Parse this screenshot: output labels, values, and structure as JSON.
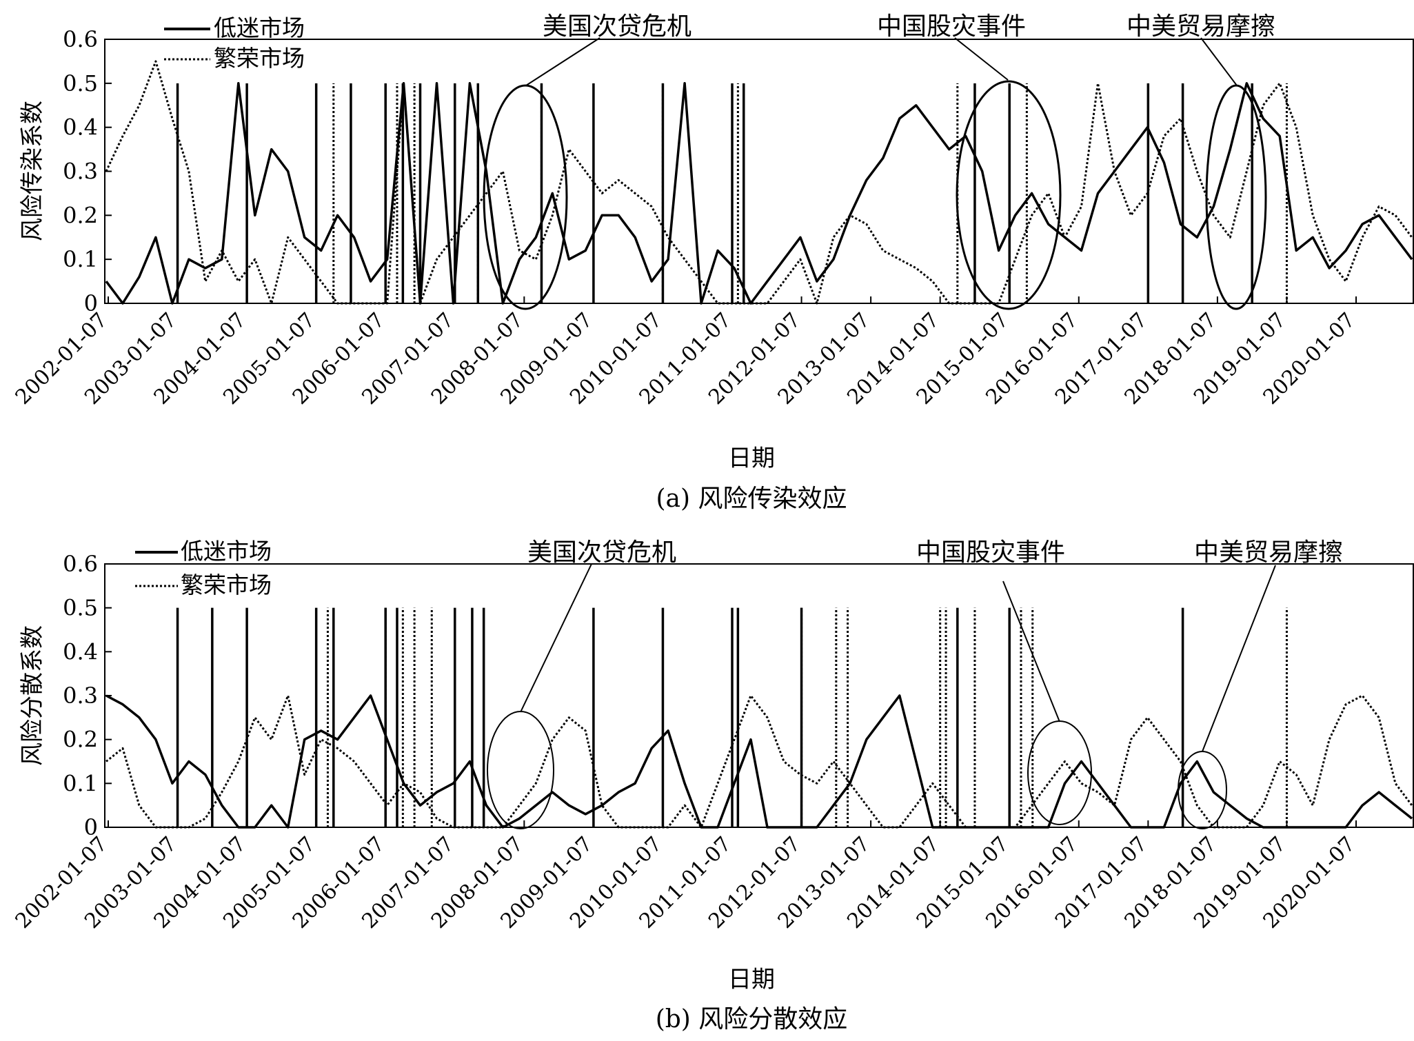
{
  "figure": {
    "caption_a": "(a) 风险传染效应",
    "caption_b": "(b) 风险分散效应"
  },
  "chart_data": [
    {
      "type": "line",
      "panel": "a",
      "ylabel": "风险传染系数",
      "xlabel": "日期",
      "ylim": [
        0,
        0.6
      ],
      "yticks": [
        "0",
        "0.1",
        "0.2",
        "0.3",
        "0.4",
        "0.5",
        "0.6"
      ],
      "xticks": [
        "2002-01-07",
        "2003-01-07",
        "2004-01-07",
        "2005-01-07",
        "2006-01-07",
        "2007-01-07",
        "2008-01-07",
        "2009-01-07",
        "2010-01-07",
        "2011-01-07",
        "2012-01-07",
        "2013-01-07",
        "2014-01-07",
        "2015-01-07",
        "2016-01-07",
        "2017-01-07",
        "2018-01-07",
        "2019-01-07",
        "2020-01-07"
      ],
      "legend_placement": "top-left",
      "annotations": [
        "美国次贷危机",
        "中国股灾事件",
        "中美贸易摩擦"
      ],
      "series": [
        {
          "name": "低迷市场",
          "style": "solid",
          "values": [
            0.05,
            0.0,
            0.06,
            0.15,
            0.0,
            0.1,
            0.08,
            0.1,
            0.5,
            0.2,
            0.35,
            0.3,
            0.15,
            0.12,
            0.2,
            0.15,
            0.05,
            0.1,
            0.5,
            0.0,
            0.5,
            0.0,
            0.5,
            0.3,
            0.0,
            0.1,
            0.15,
            0.25,
            0.1,
            0.12,
            0.2,
            0.2,
            0.15,
            0.05,
            0.1,
            0.5,
            0.0,
            0.12,
            0.08,
            0.0,
            0.05,
            0.1,
            0.15,
            0.05,
            0.1,
            0.2,
            0.28,
            0.33,
            0.42,
            0.45,
            0.4,
            0.35,
            0.38,
            0.3,
            0.12,
            0.2,
            0.25,
            0.18,
            0.15,
            0.12,
            0.25,
            0.3,
            0.35,
            0.4,
            0.32,
            0.18,
            0.15,
            0.22,
            0.35,
            0.5,
            0.42,
            0.38,
            0.12,
            0.15,
            0.08,
            0.12,
            0.18,
            0.2,
            0.15,
            0.1
          ],
          "peaks_at_0_5": [
            "2003-01",
            "2004-01",
            "2005-01",
            "2005-07",
            "2006-01",
            "2006-04",
            "2006-07",
            "2007-01",
            "2007-05",
            "2008-04",
            "2009-01",
            "2010-01",
            "2011-01",
            "2011-03",
            "2014-07",
            "2015-01",
            "2017-01",
            "2017-07",
            "2018-07"
          ]
        },
        {
          "name": "繁荣市场",
          "style": "dotted",
          "values": [
            0.3,
            0.38,
            0.45,
            0.55,
            0.42,
            0.3,
            0.05,
            0.12,
            0.05,
            0.1,
            0.0,
            0.15,
            0.1,
            0.05,
            0.0,
            0.0,
            0.0,
            0.0,
            0.5,
            0.0,
            0.1,
            0.15,
            0.2,
            0.25,
            0.3,
            0.12,
            0.1,
            0.2,
            0.35,
            0.3,
            0.25,
            0.28,
            0.25,
            0.22,
            0.15,
            0.1,
            0.05,
            0.0,
            0.0,
            0.0,
            0.0,
            0.05,
            0.1,
            0.0,
            0.15,
            0.2,
            0.18,
            0.12,
            0.1,
            0.08,
            0.05,
            0.0,
            0.0,
            0.0,
            0.0,
            0.1,
            0.2,
            0.25,
            0.15,
            0.22,
            0.5,
            0.3,
            0.2,
            0.25,
            0.38,
            0.42,
            0.3,
            0.2,
            0.15,
            0.3,
            0.45,
            0.5,
            0.4,
            0.2,
            0.1,
            0.05,
            0.15,
            0.22,
            0.2,
            0.15
          ],
          "peaks_at_0_5": [
            "2005-04",
            "2006-03",
            "2006-06",
            "2007-05",
            "2008-04",
            "2010-01",
            "2011-02",
            "2014-04",
            "2015-04",
            "2019-01"
          ]
        }
      ]
    },
    {
      "type": "line",
      "panel": "b",
      "ylabel": "风险分散系数",
      "xlabel": "日期",
      "ylim": [
        0,
        0.6
      ],
      "yticks": [
        "0",
        "0.1",
        "0.2",
        "0.3",
        "0.4",
        "0.5",
        "0.6"
      ],
      "xticks": [
        "2002-01-07",
        "2003-01-07",
        "2004-01-07",
        "2005-01-07",
        "2006-01-07",
        "2007-01-07",
        "2008-01-07",
        "2009-01-07",
        "2010-01-07",
        "2011-01-07",
        "2012-01-07",
        "2013-01-07",
        "2014-01-07",
        "2015-01-07",
        "2016-01-07",
        "2017-01-07",
        "2018-01-07",
        "2019-01-07",
        "2020-01-07"
      ],
      "legend_placement": "top-left",
      "annotations": [
        "美国次贷危机",
        "中国股灾事件",
        "中美贸易摩擦"
      ],
      "series": [
        {
          "name": "低迷市场",
          "style": "solid",
          "values": [
            0.3,
            0.28,
            0.25,
            0.2,
            0.1,
            0.15,
            0.12,
            0.05,
            0.0,
            0.0,
            0.05,
            0.0,
            0.2,
            0.22,
            0.2,
            0.25,
            0.3,
            0.2,
            0.1,
            0.05,
            0.08,
            0.1,
            0.15,
            0.05,
            0.0,
            0.02,
            0.05,
            0.08,
            0.05,
            0.03,
            0.05,
            0.08,
            0.1,
            0.18,
            0.22,
            0.1,
            0.0,
            0.0,
            0.1,
            0.2,
            0.0,
            0.0,
            0.0,
            0.0,
            0.05,
            0.1,
            0.2,
            0.25,
            0.3,
            0.15,
            0.0,
            0.0,
            0.0,
            0.0,
            0.0,
            0.0,
            0.0,
            0.0,
            0.1,
            0.15,
            0.1,
            0.05,
            0.0,
            0.0,
            0.0,
            0.1,
            0.15,
            0.08,
            0.05,
            0.02,
            0.0,
            0.0,
            0.0,
            0.0,
            0.0,
            0.0,
            0.05,
            0.08,
            0.05,
            0.02
          ],
          "peaks_at_0_5": [
            "2003-01",
            "2003-07",
            "2004-01",
            "2005-01",
            "2005-04",
            "2006-01",
            "2006-03",
            "2007-01",
            "2007-04",
            "2007-06",
            "2009-01",
            "2010-01",
            "2011-01",
            "2011-02",
            "2012-01",
            "2014-04",
            "2015-01",
            "2017-07"
          ]
        },
        {
          "name": "繁荣市场",
          "style": "dotted",
          "values": [
            0.15,
            0.18,
            0.05,
            0.0,
            0.0,
            0.0,
            0.02,
            0.08,
            0.15,
            0.25,
            0.2,
            0.3,
            0.12,
            0.2,
            0.18,
            0.15,
            0.1,
            0.05,
            0.1,
            0.08,
            0.02,
            0.0,
            0.0,
            0.0,
            0.0,
            0.05,
            0.1,
            0.2,
            0.25,
            0.22,
            0.05,
            0.0,
            0.0,
            0.0,
            0.0,
            0.05,
            0.0,
            0.1,
            0.2,
            0.3,
            0.25,
            0.15,
            0.12,
            0.1,
            0.15,
            0.1,
            0.05,
            0.0,
            0.0,
            0.05,
            0.1,
            0.05,
            0.0,
            0.0,
            0.0,
            0.0,
            0.05,
            0.1,
            0.15,
            0.1,
            0.08,
            0.05,
            0.2,
            0.25,
            0.2,
            0.15,
            0.05,
            0.0,
            0.0,
            0.0,
            0.05,
            0.15,
            0.12,
            0.05,
            0.2,
            0.28,
            0.3,
            0.25,
            0.1,
            0.05
          ],
          "peaks_at_0_5": [
            "2005-03",
            "2006-01",
            "2006-04",
            "2006-06",
            "2006-09",
            "2012-01",
            "2012-07",
            "2012-09",
            "2014-01",
            "2014-02",
            "2014-07",
            "2015-03",
            "2015-05",
            "2019-01"
          ]
        }
      ]
    }
  ]
}
